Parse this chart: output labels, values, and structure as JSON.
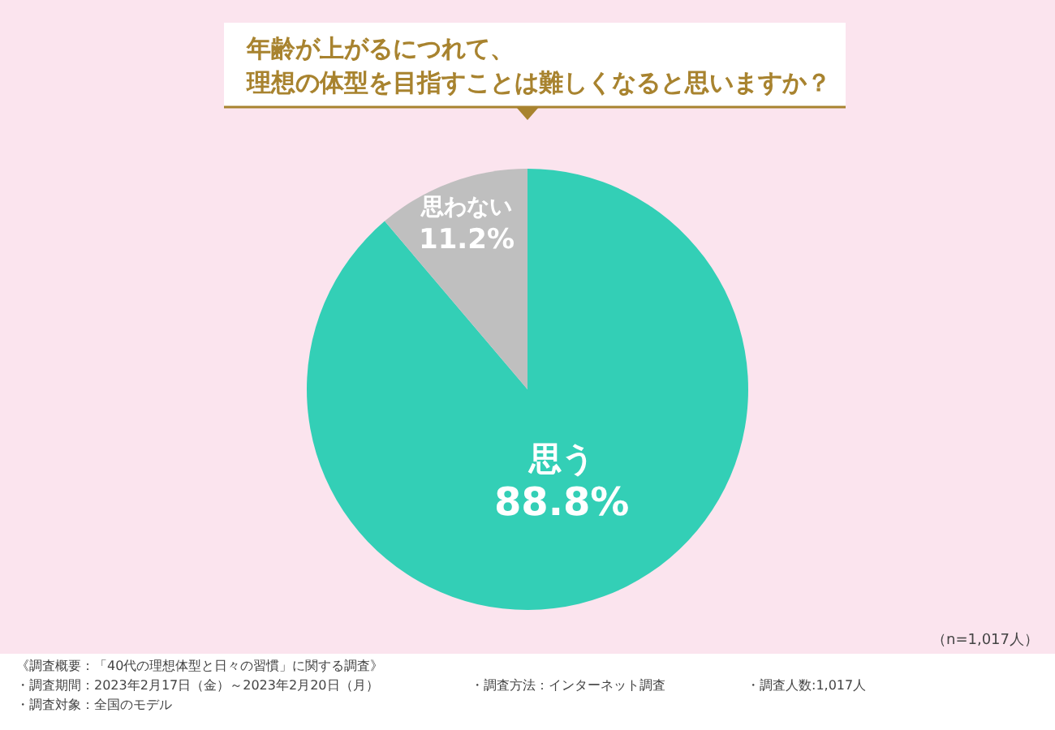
{
  "chart_data": {
    "type": "pie",
    "title": "年齢が上がるにつれて、理想の体型を目指すことは難しくなると思いますか？",
    "categories": [
      "思う",
      "思わない"
    ],
    "values": [
      88.8,
      11.2
    ],
    "colors": [
      "#33cfb6",
      "#bfbfbf"
    ],
    "value_labels": [
      "88.8%",
      "11.2%"
    ],
    "annotations": [
      "（n=1,017人）",
      "《調査概要：「40代の理想体型と日々の習慣」に関する調査》",
      "・調査期間：2023年2月17日（金）～2023年2月20日（月）",
      "・調査方法：インターネット調査",
      "・調査人数:1,017人",
      "・調査対象：全国のモデル"
    ]
  }
}
